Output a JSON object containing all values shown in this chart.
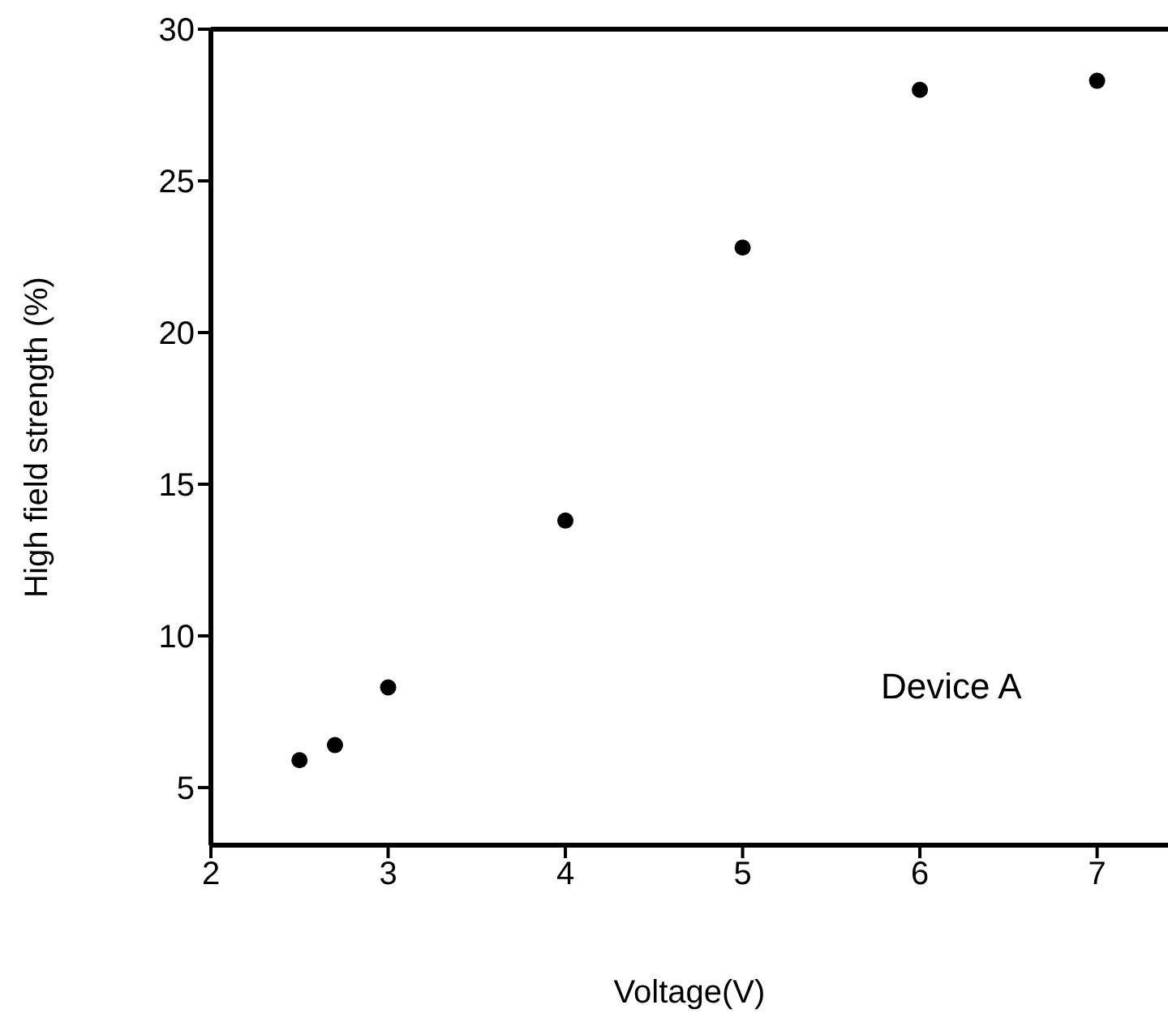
{
  "chart_data": {
    "type": "scatter",
    "xlabel": "Voltage(V)",
    "ylabel": "High field strength (%)",
    "x": [
      2.5,
      2.7,
      3,
      4,
      5,
      6,
      7
    ],
    "values": [
      5.9,
      6.4,
      8.3,
      13.8,
      22.8,
      28.0,
      28.3
    ],
    "color": "#000000",
    "marker": "circle",
    "xlim": [
      2,
      7.4
    ],
    "xticks": [
      2,
      3,
      4,
      5,
      6,
      7
    ],
    "ylim": [
      3.1,
      30
    ],
    "yticks": [
      5,
      10,
      15,
      20,
      25,
      30
    ],
    "grid": false,
    "annotations": [
      "Device A"
    ]
  }
}
